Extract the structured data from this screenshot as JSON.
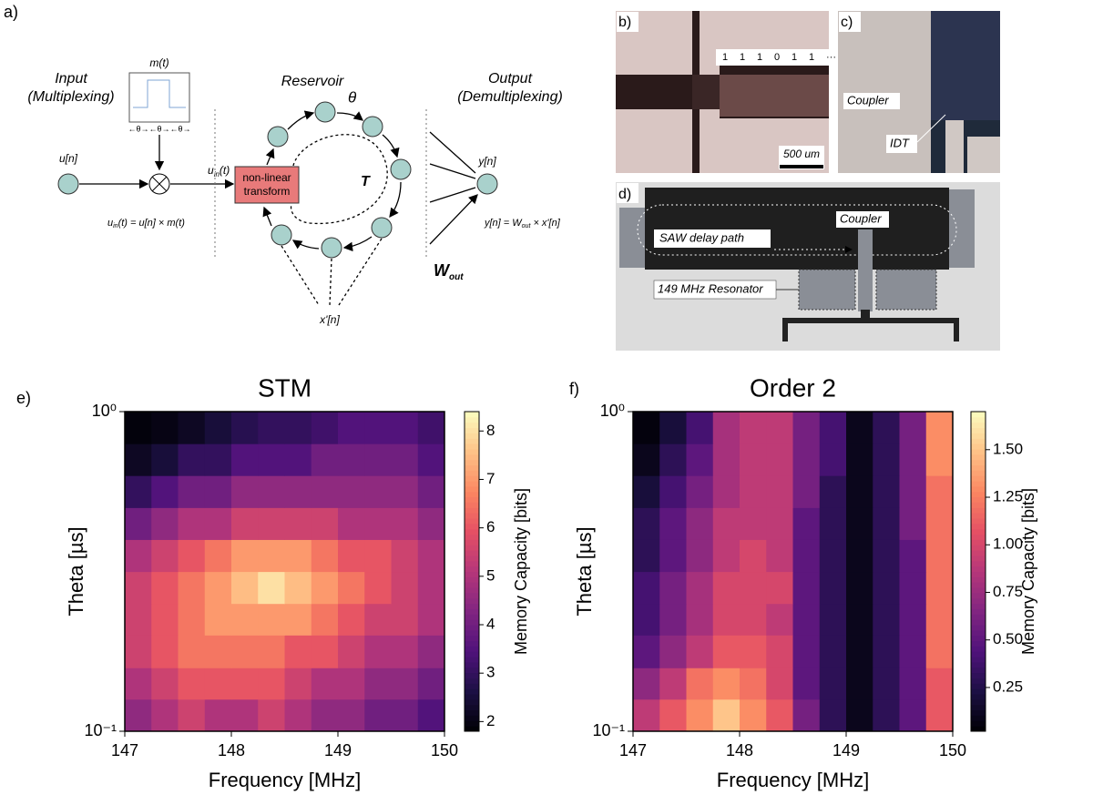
{
  "diagram": {
    "label": "a)",
    "input": [
      "Input",
      "(Multiplexing)"
    ],
    "mask_label": "m(t)",
    "mask_ticks": "←θ→←θ→←θ→",
    "input_node": "u[n]",
    "uin": {
      "base": "u",
      "sub": "in",
      "rest": "(t)"
    },
    "uin_eq": {
      "base": "u",
      "sub": "in",
      "rest": "(t) = u[n] × m(t)"
    },
    "transform": [
      "non-linear",
      "transform"
    ],
    "reservoir": "Reservoir",
    "theta": "θ",
    "delay": "T",
    "output": [
      "Output",
      "(Demultiplexing)"
    ],
    "output_node": "y[n]",
    "weights": {
      "base": "W",
      "sub": "out"
    },
    "states": "x'[n]",
    "out_eq": {
      "base": "y[n] = W",
      "sub": "out",
      "rest": " × x'[n]"
    }
  },
  "micrographs": {
    "b": {
      "label": "b)",
      "bits": [
        "1",
        "1",
        "1",
        "0",
        "1",
        "1",
        "···"
      ],
      "scale": "500 um"
    },
    "c": {
      "label": "c)",
      "coupler": "Coupler",
      "idt": "IDT"
    },
    "d": {
      "label": "d)",
      "coupler": "Coupler",
      "path": "SAW delay path",
      "resonator": "149 MHz Resonator"
    }
  },
  "chart_data": [
    {
      "type": "heatmap",
      "label": "e)",
      "title": "STM",
      "xlabel": "Frequency [MHz]",
      "ylabel": "Theta [µs]",
      "colorbar_label": "Memory Capacity [bits]",
      "colormap": "magma",
      "ylog": true,
      "xbins": [
        147,
        147.25,
        147.5,
        147.75,
        148,
        148.25,
        148.5,
        148.75,
        149,
        149.25,
        149.5,
        149.75,
        150
      ],
      "ybins": [
        0.1,
        0.126,
        0.158,
        0.2,
        0.251,
        0.316,
        0.398,
        0.501,
        0.631,
        0.794,
        1
      ],
      "z": [
        [
          4.5,
          5,
          5.5,
          5,
          5,
          5.5,
          5,
          4.5,
          4.5,
          4,
          4,
          3.5
        ],
        [
          5,
          5.5,
          6,
          6,
          6,
          6,
          5.5,
          5,
          5,
          4.5,
          4.5,
          4
        ],
        [
          5.5,
          6,
          6.5,
          6.5,
          6.5,
          6.5,
          6,
          6,
          5.5,
          5,
          5,
          4.5
        ],
        [
          5.5,
          6,
          6.5,
          7,
          7,
          7,
          7,
          6.5,
          6,
          5.5,
          5.5,
          5
        ],
        [
          5.5,
          6,
          6.5,
          7,
          7.5,
          8,
          7.5,
          7,
          6.5,
          6,
          5.5,
          5
        ],
        [
          5,
          5.5,
          6,
          6.5,
          7,
          7,
          7,
          6.5,
          6,
          6,
          5.5,
          5
        ],
        [
          4,
          4.5,
          5,
          5,
          5.5,
          5.5,
          5.5,
          5.5,
          5,
          5,
          5,
          4.5
        ],
        [
          3,
          3.5,
          4,
          4,
          4.5,
          4.5,
          4.5,
          4.5,
          4.5,
          4.5,
          4.5,
          4
        ],
        [
          2.2,
          2.5,
          3,
          3,
          3.5,
          3.5,
          3.5,
          4,
          4,
          4,
          4,
          3.5
        ],
        [
          1.9,
          2,
          2.2,
          2.5,
          2.8,
          3,
          3,
          3.2,
          3.5,
          3.5,
          3.5,
          3.2
        ]
      ],
      "xlim": [
        147,
        150
      ],
      "ylim": [
        0.1,
        1
      ],
      "xticks": [
        147,
        148,
        149,
        150
      ],
      "yticks": [
        {
          "value": 0.1,
          "label": "10⁻¹"
        },
        {
          "value": 1,
          "label": "10⁰"
        }
      ],
      "clim": [
        1.8,
        8.4
      ],
      "cticks": [
        2,
        3,
        4,
        5,
        6,
        7,
        8
      ]
    },
    {
      "type": "heatmap",
      "label": "f)",
      "title": "Order 2",
      "xlabel": "Frequency [MHz]",
      "ylabel": "Theta [µs]",
      "colorbar_label": "Memory Capacity [bits]",
      "colormap": "magma",
      "ylog": true,
      "xbins": [
        147,
        147.25,
        147.5,
        147.75,
        148,
        148.25,
        148.5,
        148.75,
        149,
        149.25,
        149.5,
        149.75,
        150
      ],
      "ybins": [
        0.1,
        0.126,
        0.158,
        0.2,
        0.251,
        0.316,
        0.398,
        0.501,
        0.631,
        0.794,
        1
      ],
      "z": [
        [
          0.9,
          1.1,
          1.3,
          1.5,
          1.3,
          1.1,
          0.6,
          0.3,
          0.1,
          0.3,
          0.5,
          1.1
        ],
        [
          0.7,
          0.9,
          1.2,
          1.3,
          1.2,
          1.0,
          0.5,
          0.3,
          0.1,
          0.3,
          0.5,
          1.1
        ],
        [
          0.5,
          0.7,
          0.9,
          1.1,
          1.1,
          1.0,
          0.5,
          0.3,
          0.1,
          0.3,
          0.5,
          1.2
        ],
        [
          0.4,
          0.6,
          0.8,
          1.0,
          1.0,
          0.9,
          0.5,
          0.3,
          0.1,
          0.3,
          0.5,
          1.2
        ],
        [
          0.4,
          0.6,
          0.8,
          1.0,
          1.0,
          1.0,
          0.5,
          0.3,
          0.1,
          0.3,
          0.5,
          1.2
        ],
        [
          0.3,
          0.5,
          0.7,
          0.9,
          1.0,
          0.9,
          0.5,
          0.3,
          0.1,
          0.3,
          0.5,
          1.2
        ],
        [
          0.3,
          0.5,
          0.7,
          0.9,
          0.9,
          0.9,
          0.5,
          0.3,
          0.1,
          0.3,
          0.6,
          1.2
        ],
        [
          0.2,
          0.4,
          0.6,
          0.8,
          0.9,
          0.9,
          0.6,
          0.3,
          0.1,
          0.3,
          0.6,
          1.2
        ],
        [
          0.1,
          0.3,
          0.5,
          0.8,
          0.9,
          0.9,
          0.6,
          0.4,
          0.1,
          0.3,
          0.6,
          1.3
        ],
        [
          0.05,
          0.2,
          0.4,
          0.8,
          0.9,
          0.9,
          0.6,
          0.4,
          0.1,
          0.3,
          0.6,
          1.3
        ]
      ],
      "xlim": [
        147,
        150
      ],
      "ylim": [
        0.1,
        1
      ],
      "xticks": [
        147,
        148,
        149,
        150
      ],
      "yticks": [
        {
          "value": 0.1,
          "label": "10⁻¹"
        },
        {
          "value": 1,
          "label": "10⁰"
        }
      ],
      "clim": [
        0.02,
        1.7
      ],
      "cticks": [
        0.25,
        {
          "value": 0.5,
          "label": "0.50"
        },
        0.75,
        {
          "value": 1,
          "label": "1.00"
        },
        1.25,
        {
          "value": 1.5,
          "label": "1.50"
        }
      ]
    }
  ]
}
